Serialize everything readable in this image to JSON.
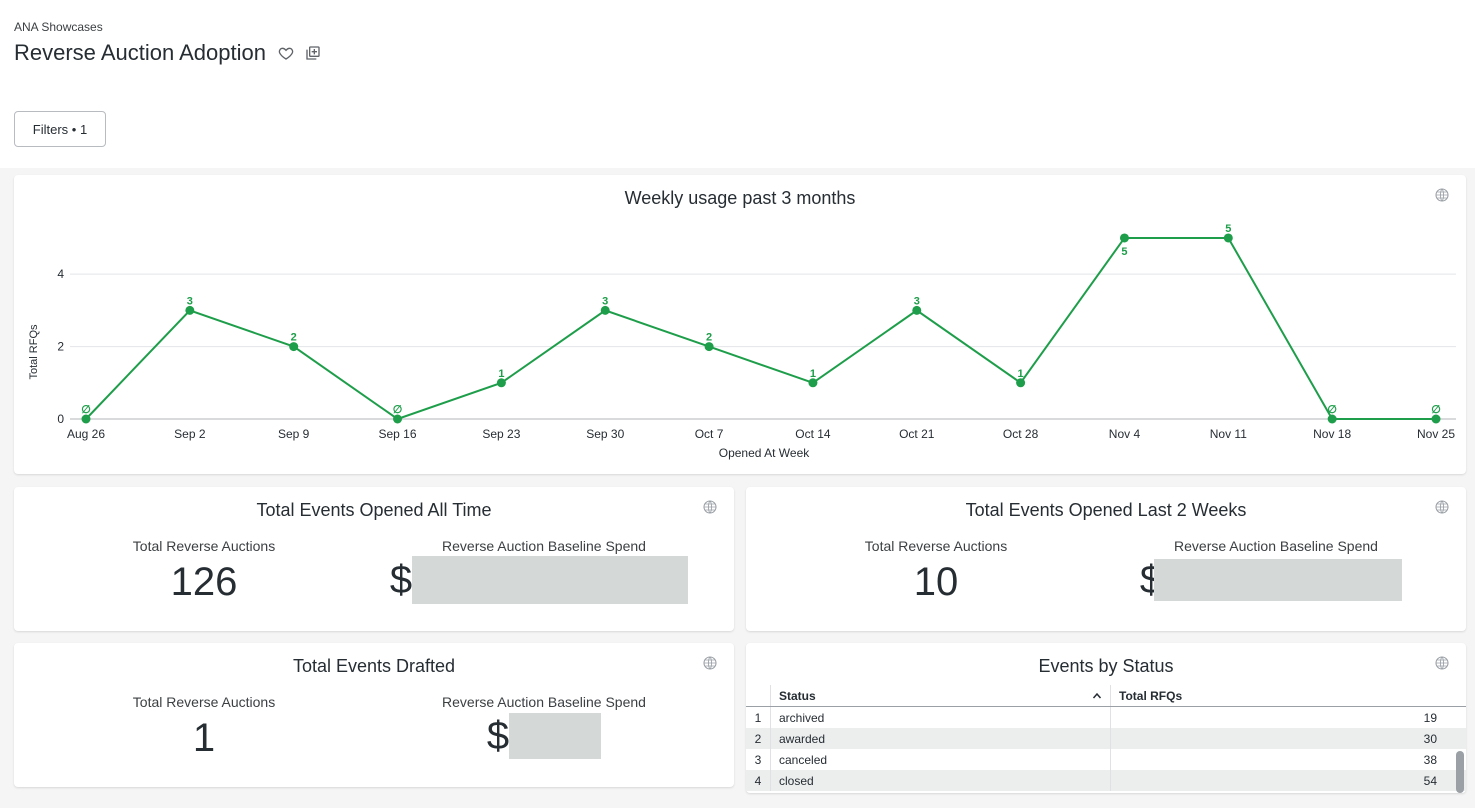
{
  "header": {
    "breadcrumb": "ANA Showcases",
    "title": "Reverse Auction Adoption",
    "filters_label": "Filters • 1"
  },
  "usage_tile": {
    "title": "Weekly usage past 3 months"
  },
  "chart_data": {
    "type": "line",
    "title": "Weekly usage past 3 months",
    "xlabel": "Opened At Week",
    "ylabel": "Total RFQs",
    "categories": [
      "Aug 26",
      "Sep 2",
      "Sep 9",
      "Sep 16",
      "Sep 23",
      "Sep 30",
      "Oct 7",
      "Oct 14",
      "Oct 21",
      "Oct 28",
      "Nov 4",
      "Nov 11",
      "Nov 18",
      "Nov 25"
    ],
    "values": [
      0,
      3,
      2,
      0,
      1,
      3,
      2,
      1,
      3,
      1,
      5,
      5,
      0,
      0
    ],
    "data_labels": [
      "∅",
      "3",
      "2",
      "∅",
      "1",
      "3",
      "2",
      "1",
      "3",
      "1",
      "5",
      "5",
      "∅",
      "∅"
    ],
    "yticks": [
      "0",
      "2",
      "4"
    ],
    "ylim": [
      0,
      5.8
    ],
    "grid": true,
    "color": "#1e9e4a"
  },
  "kpi_all_time": {
    "title": "Total Events Opened All Time",
    "auctions_label": "Total Reverse Auctions",
    "auctions_value": "126",
    "spend_label": "Reverse Auction Baseline Spend",
    "spend_prefix": "$"
  },
  "kpi_two_weeks": {
    "title": "Total Events Opened Last 2 Weeks",
    "auctions_label": "Total Reverse Auctions",
    "auctions_value": "10",
    "spend_label": "Reverse Auction Baseline Spend",
    "spend_prefix": "$"
  },
  "kpi_drafted": {
    "title": "Total Events Drafted",
    "auctions_label": "Total Reverse Auctions",
    "auctions_value": "1",
    "spend_label": "Reverse Auction Baseline Spend",
    "spend_prefix": "$"
  },
  "status_table": {
    "title": "Events by Status",
    "col_status": "Status",
    "col_total": "Total RFQs",
    "rows": [
      {
        "idx": "1",
        "status": "archived",
        "total": "19"
      },
      {
        "idx": "2",
        "status": "awarded",
        "total": "30"
      },
      {
        "idx": "3",
        "status": "canceled",
        "total": "38"
      },
      {
        "idx": "4",
        "status": "closed",
        "total": "54"
      }
    ]
  },
  "icons": [
    "heart-icon",
    "add-to-board-icon",
    "globe-icon",
    "sort-asc-icon"
  ]
}
